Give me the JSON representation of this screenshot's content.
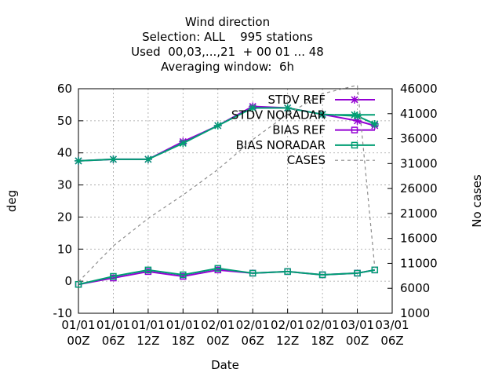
{
  "chart_data": {
    "type": "line",
    "title": [
      "Wind direction",
      "Selection: ALL    995 stations",
      "Used  00,03,...,21  + 00 01 ... 48",
      "Averaging window:  6h"
    ],
    "x_label": "Date",
    "y_label": "deg",
    "y2_label": "No cases",
    "x": [
      0,
      6,
      12,
      18,
      24,
      30,
      36,
      42,
      48,
      51
    ],
    "xlim": [
      0,
      54
    ],
    "xticks": [
      {
        "value": 0,
        "label": "01/01\n00Z"
      },
      {
        "value": 6,
        "label": "01/01\n06Z"
      },
      {
        "value": 12,
        "label": "01/01\n12Z"
      },
      {
        "value": 18,
        "label": "01/01\n18Z"
      },
      {
        "value": 24,
        "label": "02/01\n00Z"
      },
      {
        "value": 30,
        "label": "02/01\n06Z"
      },
      {
        "value": 36,
        "label": "02/01\n12Z"
      },
      {
        "value": 42,
        "label": "02/01\n18Z"
      },
      {
        "value": 48,
        "label": "03/01\n00Z"
      },
      {
        "value": 54,
        "label": "03/01\n06Z"
      }
    ],
    "ylim": [
      -10,
      60
    ],
    "yticks": [
      -10,
      0,
      10,
      20,
      30,
      40,
      50,
      60
    ],
    "y2lim": [
      1000,
      46000
    ],
    "y2ticks": [
      1000,
      6000,
      11000,
      16000,
      21000,
      26000,
      31000,
      36000,
      41000,
      46000
    ],
    "grid": true,
    "legend": "top-right",
    "series": [
      {
        "name": "STDV REF",
        "color": "#9400d3",
        "marker": "star",
        "values": [
          37.5,
          38,
          38,
          43.5,
          48.5,
          54.5,
          54,
          52,
          50,
          48.5
        ]
      },
      {
        "name": "STDV NORADAR",
        "color": "#009e73",
        "marker": "star",
        "values": [
          37.5,
          38,
          38,
          43,
          48.5,
          54,
          54,
          52,
          51.5,
          49
        ]
      },
      {
        "name": "BIAS REF",
        "color": "#9400d3",
        "marker": "square",
        "values": [
          -1,
          1,
          3,
          1.5,
          3.5,
          2.5,
          3,
          2,
          2.5,
          3.5
        ]
      },
      {
        "name": "BIAS NORADAR",
        "color": "#009e73",
        "marker": "square",
        "values": [
          -1,
          1.5,
          3.5,
          2,
          4,
          2.5,
          3,
          2,
          2.5,
          3.5
        ]
      },
      {
        "name": "CASES",
        "color": "#8c8c8c",
        "marker": "none",
        "dashed": true,
        "axis": "y2",
        "values": [
          7300,
          14500,
          20000,
          24700,
          29800,
          35800,
          40900,
          45000,
          46700,
          10200
        ]
      }
    ]
  }
}
